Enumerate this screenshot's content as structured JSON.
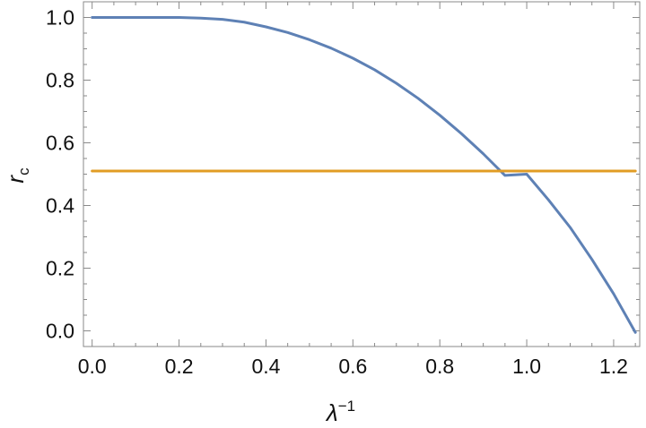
{
  "chart_data": {
    "type": "line",
    "title": "",
    "xlabel": "λ",
    "xlabel_superscript": "−1",
    "ylabel": "r",
    "ylabel_subscript": "c",
    "xlim": [
      -0.02,
      1.26
    ],
    "ylim": [
      -0.05,
      1.05
    ],
    "x_ticks": [
      0.0,
      0.2,
      0.4,
      0.6,
      0.8,
      1.0,
      1.2
    ],
    "x_tick_labels": [
      "0.0",
      "0.2",
      "0.4",
      "0.6",
      "0.8",
      "1.0",
      "1.2"
    ],
    "y_ticks": [
      0.0,
      0.2,
      0.4,
      0.6,
      0.8,
      1.0
    ],
    "y_tick_labels": [
      "0.0",
      "0.2",
      "0.4",
      "0.6",
      "0.8",
      "1.0"
    ],
    "grid": false,
    "legend": "none",
    "series": [
      {
        "color": "#5E81B5",
        "x": [
          0.0,
          0.1,
          0.2,
          0.25,
          0.3,
          0.35,
          0.4,
          0.45,
          0.5,
          0.55,
          0.6,
          0.65,
          0.7,
          0.75,
          0.8,
          0.85,
          0.9,
          0.95,
          1.0,
          1.05,
          1.1,
          1.15,
          1.2,
          1.25
        ],
        "y": [
          1.0,
          1.0,
          1.0,
          0.998,
          0.994,
          0.985,
          0.97,
          0.952,
          0.929,
          0.902,
          0.87,
          0.833,
          0.79,
          0.742,
          0.688,
          0.629,
          0.565,
          0.496,
          0.5,
          0.418,
          0.33,
          0.228,
          0.118,
          -0.005
        ]
      },
      {
        "color": "#E19C24",
        "x": [
          0.0,
          1.25
        ],
        "y": [
          0.51,
          0.51
        ]
      }
    ]
  }
}
